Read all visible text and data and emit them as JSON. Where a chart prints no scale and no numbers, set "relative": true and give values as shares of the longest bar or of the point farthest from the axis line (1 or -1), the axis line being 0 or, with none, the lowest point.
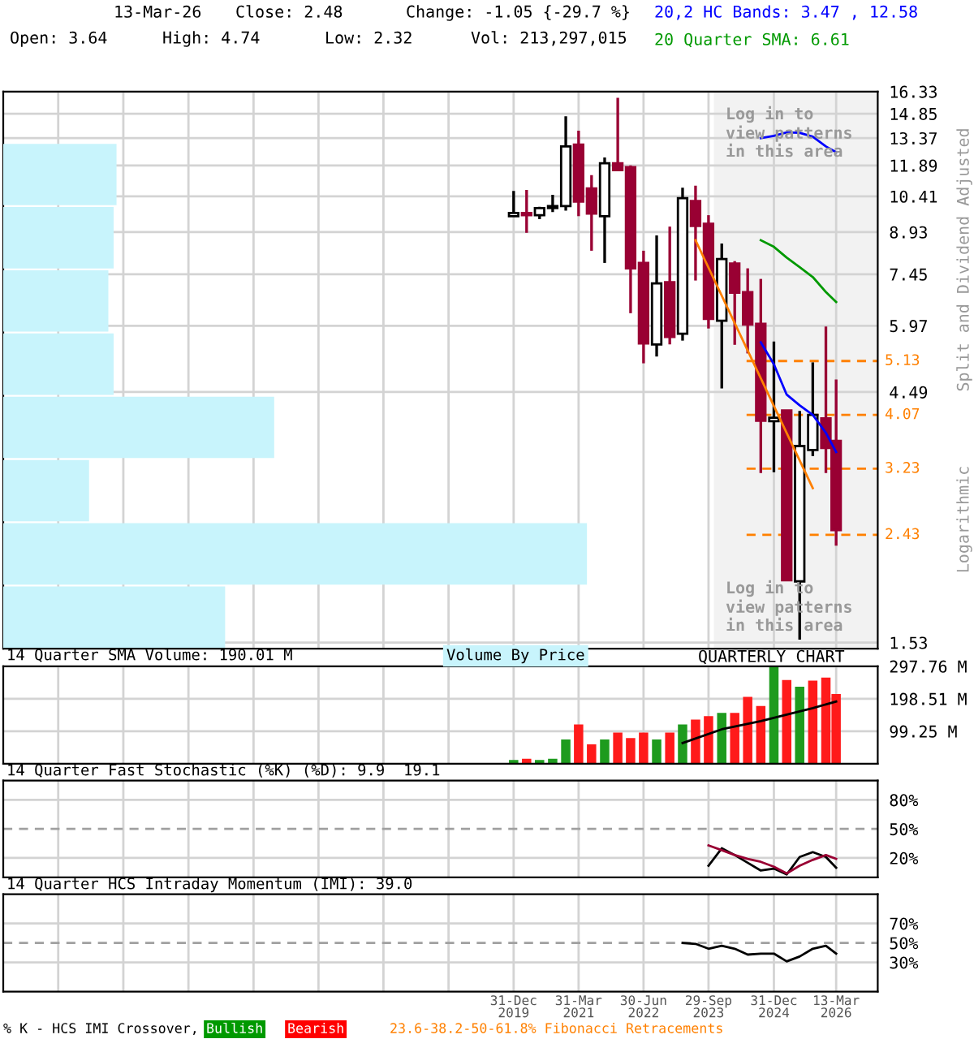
{
  "chart_data": [
    {
      "type": "candlestick",
      "log": true,
      "grid": true,
      "tick_labels": "y",
      "x": [
        "2019-12-31",
        "2020-03-31",
        "2020-06-30",
        "2020-09-30",
        "2020-12-31",
        "2021-03-31",
        "2021-06-30",
        "2021-09-30",
        "2021-12-31",
        "2022-03-31",
        "2022-06-30",
        "2022-09-30",
        "2022-12-31",
        "2023-03-31",
        "2023-06-30",
        "2023-09-29",
        "2023-12-31",
        "2024-03-31",
        "2024-06-30",
        "2024-09-30",
        "2024-12-31",
        "2025-03-31",
        "2025-06-30",
        "2025-09-30",
        "2025-12-31",
        "2026-03-13"
      ],
      "ohlc": [
        [
          9.56,
          10.65,
          9.56,
          9.69
        ],
        [
          9.69,
          10.7,
          8.9,
          9.6
        ],
        [
          9.6,
          9.95,
          9.44,
          9.9
        ],
        [
          9.9,
          10.48,
          9.73,
          9.98
        ],
        [
          9.98,
          14.68,
          9.79,
          12.9
        ],
        [
          13.0,
          13.8,
          9.56,
          10.18
        ],
        [
          10.77,
          11.4,
          8.24,
          9.67
        ],
        [
          9.56,
          12.3,
          7.82,
          12.0
        ],
        [
          12.0,
          15.9,
          11.6,
          11.65
        ],
        [
          11.8,
          11.89,
          6.3,
          7.64
        ],
        [
          7.82,
          8.24,
          5.08,
          5.53
        ],
        [
          5.51,
          8.8,
          5.23,
          7.16
        ],
        [
          7.2,
          9.14,
          5.51,
          5.69
        ],
        [
          5.77,
          10.8,
          5.6,
          10.33
        ],
        [
          10.2,
          10.9,
          7.25,
          9.17
        ],
        [
          9.25,
          9.6,
          5.9,
          6.15
        ],
        [
          6.1,
          8.5,
          4.56,
          7.95
        ],
        [
          7.8,
          7.88,
          5.5,
          6.88
        ],
        [
          6.9,
          7.64,
          5.3,
          6.0
        ],
        [
          6.02,
          7.3,
          3.17,
          3.97
        ],
        [
          3.96,
          5.58,
          3.18,
          4.02
        ],
        [
          4.15,
          4.15,
          2.0,
          2.0
        ],
        [
          1.99,
          4.14,
          1.55,
          3.56
        ],
        [
          3.5,
          5.1,
          3.41,
          4.07
        ],
        [
          4.01,
          5.95,
          3.17,
          3.53
        ],
        [
          3.64,
          4.74,
          2.32,
          2.48
        ]
      ],
      "colors": [
        "#000000",
        "#990033",
        "#000000",
        "#000000",
        "#000000",
        "#990033",
        "#990033",
        "#000000",
        "#990033",
        "#990033",
        "#990033",
        "#000000",
        "#990033",
        "#000000",
        "#990033",
        "#990033",
        "#000000",
        "#990033",
        "#990033",
        "#990033",
        "#000000",
        "#990033",
        "#000000",
        "#000000",
        "#990033",
        "#990033"
      ],
      "series": [
        {
          "type": "line",
          "name": "20,2 HC Bands: 3.47 , 12.58",
          "color": "#0000ff",
          "x": [
            "2024-09-30",
            "2024-12-31",
            "2025-03-31",
            "2025-06-30",
            "2025-09-30",
            "2025-12-31",
            "2026-03-13"
          ],
          "values": [
            13.37,
            13.5,
            13.7,
            13.68,
            13.45,
            12.9,
            12.58
          ]
        },
        {
          "type": "line",
          "name": "20 Quarter SMA: 6.61",
          "color": "#009900",
          "x": [
            "2024-09-30",
            "2024-12-31",
            "2025-03-31",
            "2025-06-30",
            "2025-09-30",
            "2025-12-31",
            "2026-03-13"
          ],
          "values": [
            8.62,
            8.38,
            8.0,
            7.68,
            7.36,
            6.9,
            6.61
          ]
        },
        {
          "type": "line",
          "color": "#0000ff",
          "x": [
            "2024-09-30",
            "2024-12-31",
            "2025-03-31",
            "2025-06-30",
            "2025-09-30",
            "2025-12-31",
            "2026-03-13"
          ],
          "values": [
            5.56,
            5.06,
            4.44,
            4.24,
            4.07,
            3.77,
            3.47
          ]
        },
        {
          "type": "line",
          "color": "#ff8000",
          "x": [
            "2023-06-30",
            "2025-09-30"
          ],
          "values": [
            8.62,
            2.97
          ]
        }
      ],
      "xlim": [
        "2010-03-10",
        "2026-12-30"
      ],
      "xticks": [
        {
          "value": "2011-03-31",
          "label": null
        },
        {
          "value": "2012-06-30",
          "label": null
        },
        {
          "value": "2013-09-30",
          "label": null
        },
        {
          "value": "2014-12-31",
          "label": null
        },
        {
          "value": "2016-03-31",
          "label": null
        },
        {
          "value": "2017-06-30",
          "label": null
        },
        {
          "value": "2018-09-30",
          "label": null
        },
        {
          "value": "2019-12-31",
          "label": null
        },
        {
          "value": "2021-03-31",
          "label": null
        },
        {
          "value": "2022-06-30",
          "label": null
        },
        {
          "value": "2023-09-29",
          "label": null
        },
        {
          "value": "2024-12-31",
          "label": null
        },
        {
          "value": "2026-03-13",
          "label": null
        }
      ],
      "ylim": [
        1.49,
        16.33
      ],
      "yticks": [
        16.33,
        14.85,
        13.37,
        11.89,
        10.41,
        8.93,
        7.45,
        5.97,
        4.49,
        1.53
      ],
      "bands": [
        {
          "axis": "x",
          "from": "2023-11-06",
          "to": "2026-12-30",
          "color": "#f2f2f2"
        }
      ],
      "ref_lines": [
        {
          "axis": "y",
          "value": 5.13,
          "label": "5.13",
          "color": "#ff8000",
          "line_style": "dashed"
        },
        {
          "axis": "y",
          "value": 4.07,
          "label": "4.07",
          "color": "#ff8000",
          "line_style": "dashed"
        },
        {
          "axis": "y",
          "value": 3.23,
          "label": "3.23",
          "color": "#ff8000",
          "line_style": "dashed"
        },
        {
          "axis": "y",
          "value": 2.43,
          "label": "2.43",
          "color": "#ff8000",
          "line_style": "dashed"
        }
      ],
      "annotations": [
        "13-Mar-26",
        "Close: 2.48",
        "Change: -1.05 {-29.7 %}",
        "Open: 3.64",
        "High: 4.74",
        "Low: 2.32",
        "Vol: 213,297,015",
        "Split and Dividend Adjusted",
        "Logarithmic",
        "Log in to\nview patterns\nin this area",
        "Log in to\nview patterns\nin this area",
        "QUARTERLY CHART",
        "% K - HCS IMI Crossover,",
        "Bullish",
        "Bearish",
        "23.6-38.2-50-61.8% Fibonacci Retracements"
      ]
    },
    {
      "type": "bar",
      "orientation": "horizontal",
      "relative": true,
      "title": "Volume By Price",
      "color": "#c8f4fc",
      "categories": [
        null,
        null,
        null,
        null,
        null,
        null,
        null,
        null
      ],
      "values": [
        0.194,
        0.189,
        0.18,
        0.189,
        0.464,
        0.147,
        1,
        0.38
      ]
    },
    {
      "type": "bar",
      "title": "14 Quarter SMA Volume: 190.01 M",
      "grid": true,
      "tick_labels": "y",
      "x": [
        "2019-12-31",
        "2020-03-31",
        "2020-06-30",
        "2020-09-30",
        "2020-12-31",
        "2021-03-31",
        "2021-06-30",
        "2021-09-30",
        "2021-12-31",
        "2022-03-31",
        "2022-06-30",
        "2022-09-30",
        "2022-12-31",
        "2023-03-31",
        "2023-06-30",
        "2023-09-29",
        "2023-12-31",
        "2024-03-31",
        "2024-06-30",
        "2024-09-30",
        "2024-12-31",
        "2025-03-31",
        "2025-06-30",
        "2025-09-30",
        "2025-12-31",
        "2026-03-13"
      ],
      "series": [
        {
          "type": "bar",
          "colors": [
            "#1e9b1e",
            "#ff1a1a",
            "#1e9b1e",
            "#1e9b1e",
            "#1e9b1e",
            "#ff1a1a",
            "#ff1a1a",
            "#1e9b1e",
            "#ff1a1a",
            "#ff1a1a",
            "#ff1a1a",
            "#1e9b1e",
            "#ff1a1a",
            "#1e9b1e",
            "#ff1a1a",
            "#ff1a1a",
            "#1e9b1e",
            "#ff1a1a",
            "#ff1a1a",
            "#ff1a1a",
            "#1e9b1e",
            "#ff1a1a",
            "#1e9b1e",
            "#ff1a1a",
            "#ff1a1a",
            "#ff1a1a"
          ],
          "values": [
            11,
            15,
            11,
            15,
            74,
            120,
            59,
            74,
            95,
            78,
            95,
            74,
            95,
            120,
            135,
            145,
            155,
            155,
            204,
            176,
            297,
            256,
            235,
            254,
            263,
            213
          ]
        },
        {
          "type": "line",
          "color": "#000000",
          "x": [
            "2023-03-31",
            "2023-12-31",
            "2024-09-30",
            "2025-03-31",
            "2025-09-30",
            "2026-03-13"
          ],
          "values": [
            63,
            105,
            130,
            150,
            170,
            190
          ]
        }
      ],
      "xlim": [
        "2010-03-10",
        "2026-12-30"
      ],
      "xticks": [
        {
          "value": "2011-03-31",
          "label": null
        },
        {
          "value": "2012-06-30",
          "label": null
        },
        {
          "value": "2013-09-30",
          "label": null
        },
        {
          "value": "2014-12-31",
          "label": null
        },
        {
          "value": "2016-03-31",
          "label": null
        },
        {
          "value": "2017-06-30",
          "label": null
        },
        {
          "value": "2018-09-30",
          "label": null
        },
        {
          "value": "2019-12-31",
          "label": null
        },
        {
          "value": "2021-03-31",
          "label": null
        },
        {
          "value": "2022-06-30",
          "label": null
        },
        {
          "value": "2023-09-29",
          "label": null
        },
        {
          "value": "2024-12-31",
          "label": null
        },
        {
          "value": "2026-03-13",
          "label": null
        }
      ],
      "ylim": [
        0,
        297.76
      ],
      "yticks": [
        {
          "value": 297.76,
          "label": "297.76 M"
        },
        {
          "value": 198.51,
          "label": "198.51 M"
        },
        {
          "value": 99.25,
          "label": "99.25 M"
        }
      ]
    },
    {
      "type": "line",
      "title": "14 Quarter Fast Stochastic (%K) (%D): 9.9  19.1",
      "grid": true,
      "tick_labels": "y",
      "series": [
        {
          "color": "#000000",
          "x": [
            "2023-09-29",
            "2023-12-31",
            "2024-03-31",
            "2024-06-30",
            "2024-09-30",
            "2024-12-31",
            "2025-03-31",
            "2025-06-30",
            "2025-09-30",
            "2025-12-31",
            "2026-03-13"
          ],
          "values": [
            12,
            30,
            23,
            15,
            7,
            9,
            3,
            21,
            26,
            21,
            9.9
          ]
        },
        {
          "color": "#990033",
          "x": [
            "2023-09-29",
            "2023-12-31",
            "2024-03-31",
            "2024-06-30",
            "2024-09-30",
            "2024-12-31",
            "2025-03-31",
            "2025-06-30",
            "2025-09-30",
            "2025-12-31",
            "2026-03-13"
          ],
          "values": [
            33,
            28,
            23,
            19,
            16,
            11,
            4,
            12,
            18,
            23,
            19.1
          ]
        }
      ],
      "xlim": [
        "2010-03-10",
        "2026-12-30"
      ],
      "xticks": [
        {
          "value": "2011-03-31",
          "label": null
        },
        {
          "value": "2012-06-30",
          "label": null
        },
        {
          "value": "2013-09-30",
          "label": null
        },
        {
          "value": "2014-12-31",
          "label": null
        },
        {
          "value": "2016-03-31",
          "label": null
        },
        {
          "value": "2017-06-30",
          "label": null
        },
        {
          "value": "2018-09-30",
          "label": null
        },
        {
          "value": "2019-12-31",
          "label": null
        },
        {
          "value": "2021-03-31",
          "label": null
        },
        {
          "value": "2022-06-30",
          "label": null
        },
        {
          "value": "2023-09-29",
          "label": null
        },
        {
          "value": "2024-12-31",
          "label": null
        },
        {
          "value": "2026-03-13",
          "label": null
        }
      ],
      "ylim": [
        0,
        100
      ],
      "yticks": [
        {
          "value": 80,
          "label": "80%"
        },
        {
          "value": 50,
          "label": "50%"
        },
        {
          "value": 20,
          "label": "20%"
        }
      ],
      "ref_lines": [
        {
          "axis": "y",
          "value": 50,
          "color": "#a0a0a0",
          "line_style": "dashed"
        }
      ]
    },
    {
      "type": "line",
      "title": "14 Quarter HCS Intraday Momentum (IMI): 39.0",
      "grid": true,
      "series": [
        {
          "color": "#000000",
          "x": [
            "2023-03-31",
            "2023-06-30",
            "2023-09-29",
            "2023-12-31",
            "2024-03-31",
            "2024-06-30",
            "2024-09-30",
            "2024-12-31",
            "2025-03-31",
            "2025-06-30",
            "2025-09-30",
            "2025-12-31",
            "2026-03-13"
          ],
          "values": [
            50,
            49,
            44,
            47,
            44,
            38,
            39,
            39,
            31,
            36,
            44,
            47,
            39.0
          ]
        }
      ],
      "xlim": [
        "2010-03-10",
        "2026-12-30"
      ],
      "xticks": [
        {
          "value": "2011-03-31",
          "label": null
        },
        {
          "value": "2012-06-30",
          "label": null
        },
        {
          "value": "2013-09-30",
          "label": null
        },
        {
          "value": "2014-12-31",
          "label": null
        },
        {
          "value": "2016-03-31",
          "label": null
        },
        {
          "value": "2017-06-30",
          "label": null
        },
        {
          "value": "2018-09-30",
          "label": null
        },
        {
          "value": "2019-12-31",
          "label": "31-Dec\n2019"
        },
        {
          "value": "2021-03-31",
          "label": "31-Mar\n2021"
        },
        {
          "value": "2022-06-30",
          "label": "30-Jun\n2022"
        },
        {
          "value": "2023-09-29",
          "label": "29-Sep\n2023"
        },
        {
          "value": "2024-12-31",
          "label": "31-Dec\n2024"
        },
        {
          "value": "2026-03-13",
          "label": "13-Mar\n2026"
        }
      ],
      "ylim": [
        0,
        100
      ],
      "yticks": [
        {
          "value": 70,
          "label": "70%"
        },
        {
          "value": 50,
          "label": "50%"
        },
        {
          "value": 30,
          "label": "30%"
        }
      ],
      "ref_lines": [
        {
          "axis": "y",
          "value": 50,
          "color": "#a0a0a0",
          "line_style": "dashed"
        }
      ]
    }
  ]
}
